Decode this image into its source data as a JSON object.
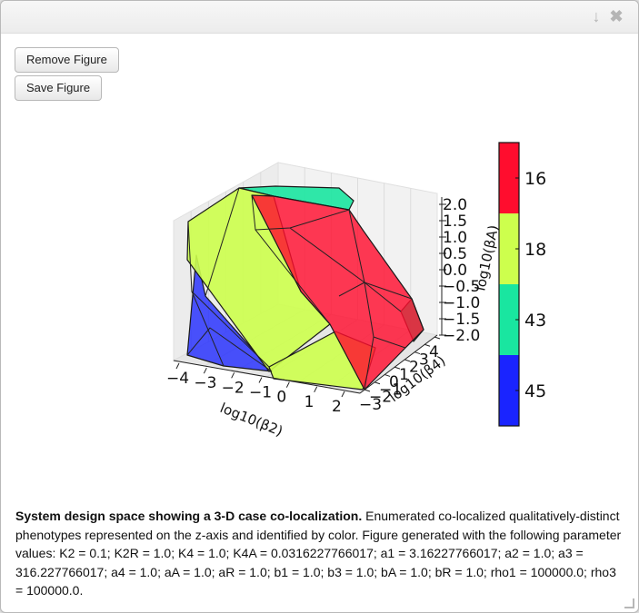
{
  "window": {
    "collapse_icon": "arrow-down-icon",
    "close_icon": "close-icon",
    "collapse_glyph": "↓",
    "close_glyph": "✖"
  },
  "toolbar": {
    "remove_label": "Remove Figure",
    "save_label": "Save Figure"
  },
  "chart_data": {
    "type": "3d-polyhedra",
    "axes": {
      "x": {
        "label": "log10(β2)",
        "ticks": [
          "−4",
          "−3",
          "−2",
          "−1",
          "0",
          "1",
          "2"
        ],
        "range": [
          -4,
          2
        ]
      },
      "y": {
        "label": "log10(β4)",
        "ticks": [
          "−3",
          "−2",
          "−1",
          "0",
          "1",
          "2",
          "3",
          "4"
        ],
        "range": [
          -3,
          4
        ]
      },
      "z": {
        "label": "log10(βA)",
        "ticks": [
          "2.0",
          "1.5",
          "1.0",
          "0.5",
          "0.0",
          "−0.5",
          "−1.0",
          "−1.5",
          "−2.0"
        ],
        "range": [
          -2.0,
          2.0
        ]
      }
    },
    "grid": true,
    "colorbar": {
      "placement": "right",
      "entries": [
        {
          "label": "16",
          "color": "#ff0d2e"
        },
        {
          "label": "18",
          "color": "#cdff4d"
        },
        {
          "label": "43",
          "color": "#19e6a0"
        },
        {
          "label": "45",
          "color": "#1a24ff"
        }
      ]
    }
  },
  "caption": {
    "bold": "System design space showing a 3-D case co-localization.",
    "text": " Enumerated co-localized qualitatively-distinct phenotypes represented on the z-axis and identified by color. Figure generated with the following parameter values: K2 = 0.1; K2R = 1.0; K4 = 1.0; K4A = 0.0316227766017; a1 = 3.16227766017; a2 = 1.0; a3 = 316.227766017; a4 = 1.0; aA = 1.0; aR = 1.0; b1 = 1.0; b3 = 1.0; bA = 1.0; bR = 1.0; rho1 = 100000.0; rho3 = 100000.0."
  }
}
